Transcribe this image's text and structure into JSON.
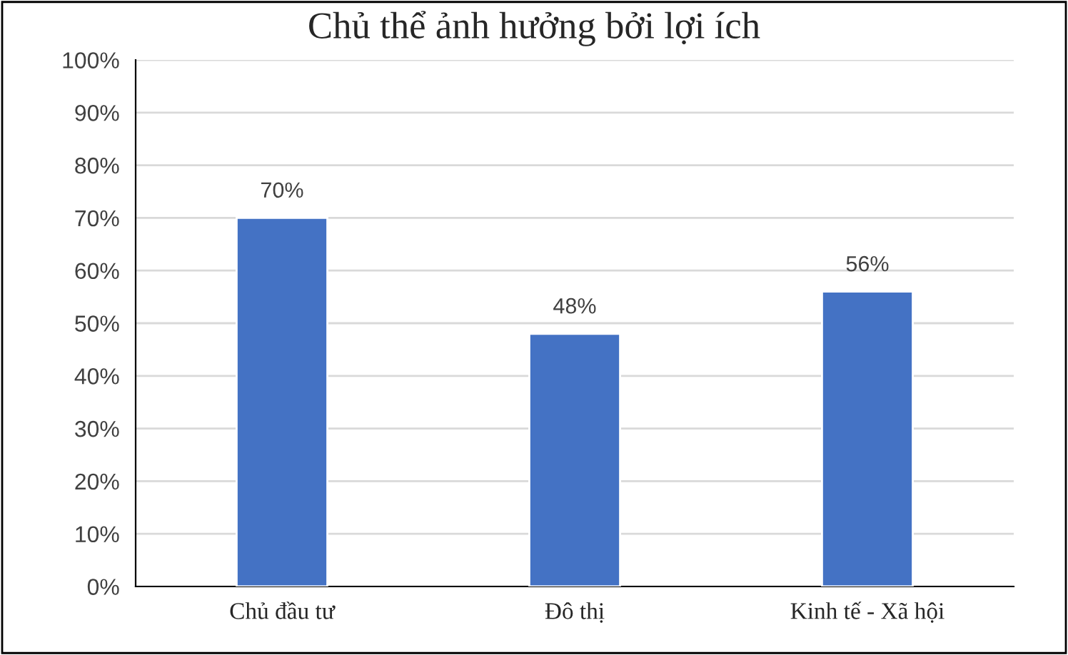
{
  "chart_data": {
    "type": "bar",
    "title": "Chủ thể ảnh hưởng bởi lợi ích",
    "categories": [
      "Chủ đầu tư",
      "Đô thị",
      "Kinh tế - Xã hội"
    ],
    "values": [
      70,
      48,
      56
    ],
    "color": "#4472c4",
    "value_labels": [
      "70%",
      "48%",
      "56%"
    ],
    "ylim": [
      0,
      100
    ],
    "yticks": [
      {
        "value": 0,
        "label": "0%"
      },
      {
        "value": 10,
        "label": "10%"
      },
      {
        "value": 20,
        "label": "20%"
      },
      {
        "value": 30,
        "label": "30%"
      },
      {
        "value": 40,
        "label": "40%"
      },
      {
        "value": 50,
        "label": "50%"
      },
      {
        "value": 60,
        "label": "60%"
      },
      {
        "value": 70,
        "label": "70%"
      },
      {
        "value": 80,
        "label": "80%"
      },
      {
        "value": 90,
        "label": "90%"
      },
      {
        "value": 100,
        "label": "100%"
      }
    ],
    "grid": "y",
    "legend": false
  }
}
